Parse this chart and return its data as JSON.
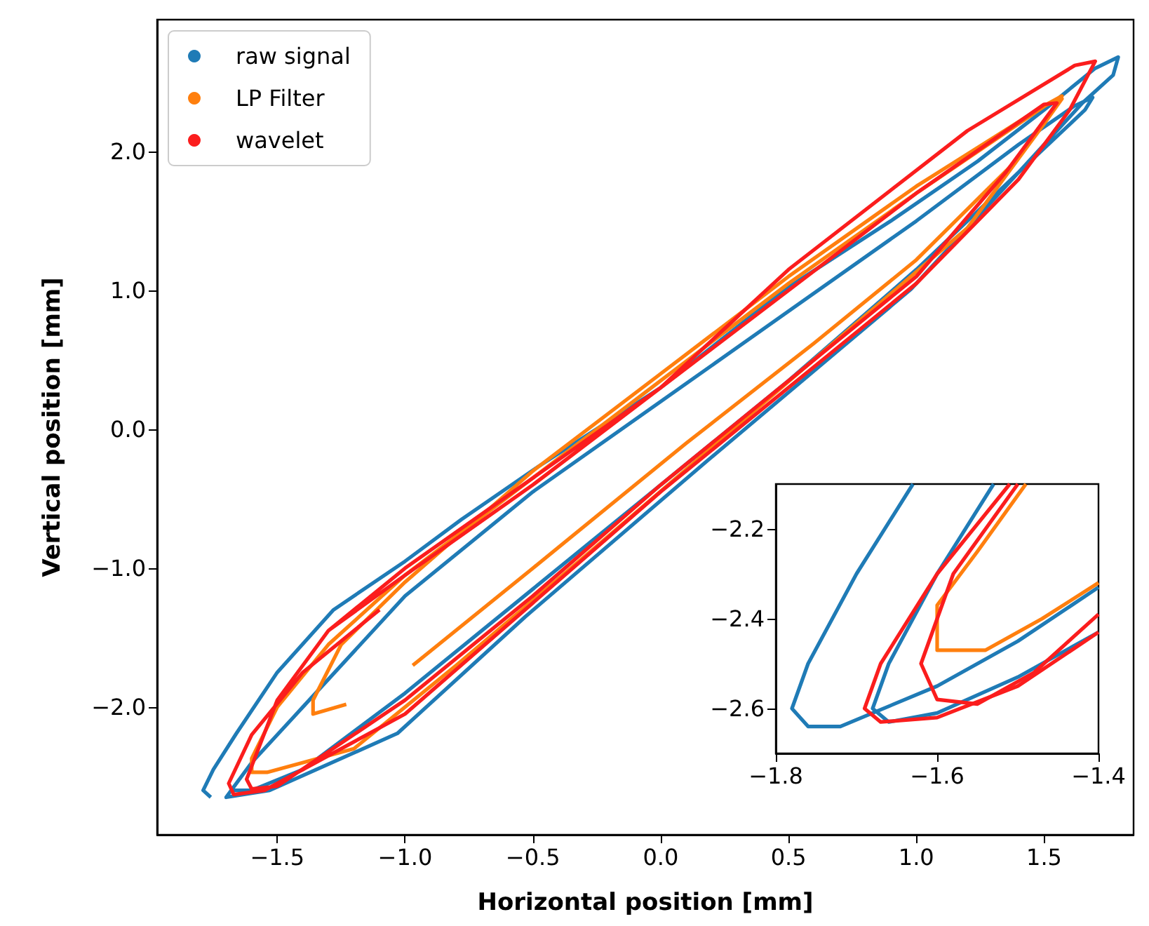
{
  "chart_data": [
    {
      "type": "line",
      "xlabel": "Horizontal position [mm]",
      "ylabel": "Vertical position [mm]",
      "xlim": [
        -1.97,
        1.85
      ],
      "ylim": [
        -2.92,
        2.95
      ],
      "xticks": [
        {
          "value": -1.5,
          "label": "−1.5"
        },
        {
          "value": -1,
          "label": "−1.0"
        },
        {
          "value": -0.5,
          "label": "−0.5"
        },
        {
          "value": 0,
          "label": "0.0"
        },
        {
          "value": 0.5,
          "label": "0.5"
        },
        {
          "value": 1,
          "label": "1.0"
        },
        {
          "value": 1.5,
          "label": "1.5"
        }
      ],
      "yticks": [
        {
          "value": -2,
          "label": "−2.0"
        },
        {
          "value": -1,
          "label": "−1.0"
        },
        {
          "value": 0,
          "label": "0.0"
        },
        {
          "value": 1,
          "label": "1.0"
        },
        {
          "value": 2,
          "label": "2.0"
        }
      ],
      "legend": "top left",
      "series": [
        {
          "name": "raw signal",
          "color": "#1f7bb6",
          "x": [
            -1.76,
            -1.79,
            -1.75,
            -1.66,
            -1.5,
            -1.28,
            -1.0,
            -0.78,
            -0.48,
            0,
            0.48,
            0.9,
            1.24,
            1.5,
            1.7,
            1.79,
            1.77,
            1.65,
            1.49,
            0.98,
            0.18,
            -0.53,
            -1.03,
            -1.53,
            -1.7,
            -1.68,
            -1.6,
            -1.4,
            -1.0,
            -0.5,
            0,
            0.5,
            1.0,
            1.4,
            1.62,
            1.69,
            1.66,
            1.4,
            1.0,
            0.5,
            0,
            -0.5,
            -1.0,
            -1.4,
            -1.6,
            -1.68
          ],
          "values": [
            -2.65,
            -2.6,
            -2.45,
            -2.19,
            -1.75,
            -1.3,
            -0.95,
            -0.65,
            -0.27,
            0.3,
            1.0,
            1.5,
            1.93,
            2.3,
            2.6,
            2.68,
            2.55,
            2.35,
            2.03,
            1.01,
            -0.23,
            -1.35,
            -2.19,
            -2.6,
            -2.65,
            -2.6,
            -2.4,
            -2.0,
            -1.2,
            -0.45,
            0.2,
            0.85,
            1.5,
            2.05,
            2.33,
            2.39,
            2.3,
            1.85,
            1.15,
            0.35,
            -0.4,
            -1.15,
            -1.9,
            -2.45,
            -2.6,
            -2.6
          ]
        },
        {
          "name": "LP Filter",
          "color": "#ff7f0e",
          "x": [
            -0.97,
            -0.5,
            0.1,
            0.6,
            1.0,
            1.4,
            1.57,
            1.52,
            1.0,
            0.5,
            0,
            -0.5,
            -1.0,
            -1.3,
            -1.5,
            -1.6,
            -1.6,
            -1.54,
            -1.2,
            -0.8,
            -0.3,
            0.2,
            0.7,
            1.2,
            1.5,
            1.57,
            1.5,
            1.0,
            0.5,
            0,
            -0.5,
            -1.0,
            -1.25,
            -1.36,
            -1.36,
            -1.23
          ],
          "values": [
            -1.7,
            -1.0,
            -0.1,
            0.62,
            1.22,
            1.95,
            2.4,
            2.35,
            1.7,
            1.05,
            0.35,
            -0.35,
            -1.05,
            -1.55,
            -2.0,
            -2.37,
            -2.47,
            -2.47,
            -2.3,
            -1.7,
            -0.92,
            -0.13,
            0.66,
            1.45,
            2.2,
            2.38,
            2.33,
            1.75,
            1.1,
            0.4,
            -0.3,
            -1.1,
            -1.55,
            -1.95,
            -2.05,
            -1.98
          ]
        },
        {
          "name": "wavelet",
          "color": "#fb1d1d",
          "x": [
            -1.1,
            -1.4,
            -1.6,
            -1.69,
            -1.67,
            -1.55,
            -1.0,
            -0.5,
            0,
            0.5,
            1.0,
            1.4,
            1.6,
            1.7,
            1.62,
            1.2,
            0.5,
            0,
            -0.5,
            -1.0,
            -1.3,
            -1.5,
            -1.62,
            -1.6,
            -1.5,
            -1.0,
            -0.5,
            0,
            0.5,
            1.0,
            1.35,
            1.55,
            1.5,
            1.0,
            0.5,
            0,
            -0.5,
            -1.0,
            -1.3
          ],
          "values": [
            -1.3,
            -1.75,
            -2.2,
            -2.55,
            -2.63,
            -2.6,
            -2.05,
            -1.25,
            -0.45,
            0.3,
            1.05,
            1.8,
            2.3,
            2.65,
            2.62,
            2.15,
            1.15,
            0.3,
            -0.35,
            -1.0,
            -1.45,
            -1.95,
            -2.52,
            -2.59,
            -2.57,
            -1.95,
            -1.2,
            -0.4,
            0.35,
            1.1,
            1.85,
            2.35,
            2.34,
            1.7,
            1.0,
            0.3,
            -0.4,
            -1.05,
            -1.45
          ]
        }
      ]
    },
    {
      "type": "line",
      "xlim": [
        -1.8,
        -1.4
      ],
      "ylim": [
        -2.7,
        -2.1
      ],
      "xticks": [
        {
          "value": -1.8,
          "label": "−1.8"
        },
        {
          "value": -1.6,
          "label": "−1.6"
        },
        {
          "value": -1.4,
          "label": "−1.4"
        }
      ],
      "yticks": [
        {
          "value": -2.6,
          "label": "−2.6"
        },
        {
          "value": -2.4,
          "label": "−2.4"
        },
        {
          "value": -2.2,
          "label": "−2.2"
        }
      ],
      "series": [
        {
          "color": "#1f7bb6",
          "x": [
            -1.63,
            -1.7,
            -1.76,
            -1.78,
            -1.76,
            -1.72,
            -1.6,
            -1.5,
            -1.4
          ],
          "values": [
            -2.1,
            -2.3,
            -2.5,
            -2.6,
            -2.64,
            -2.64,
            -2.55,
            -2.45,
            -2.33
          ]
        },
        {
          "color": "#1f7bb6",
          "x": [
            -1.53,
            -1.6,
            -1.66,
            -1.68,
            -1.66,
            -1.6,
            -1.5,
            -1.4
          ],
          "values": [
            -2.1,
            -2.3,
            -2.5,
            -2.6,
            -2.63,
            -2.61,
            -2.53,
            -2.43
          ]
        },
        {
          "color": "#ff7f0e",
          "x": [
            -1.49,
            -1.55,
            -1.6,
            -1.6,
            -1.54,
            -1.47,
            -1.4
          ],
          "values": [
            -2.1,
            -2.25,
            -2.37,
            -2.47,
            -2.47,
            -2.4,
            -2.32
          ]
        },
        {
          "color": "#fb1d1d",
          "x": [
            -1.51,
            -1.6,
            -1.67,
            -1.69,
            -1.67,
            -1.6,
            -1.5,
            -1.4
          ],
          "values": [
            -2.1,
            -2.3,
            -2.5,
            -2.6,
            -2.63,
            -2.62,
            -2.55,
            -2.43
          ]
        },
        {
          "color": "#fb1d1d",
          "x": [
            -1.5,
            -1.58,
            -1.62,
            -1.6,
            -1.55,
            -1.48,
            -1.4
          ],
          "values": [
            -2.1,
            -2.3,
            -2.5,
            -2.58,
            -2.59,
            -2.52,
            -2.39
          ]
        }
      ]
    }
  ]
}
